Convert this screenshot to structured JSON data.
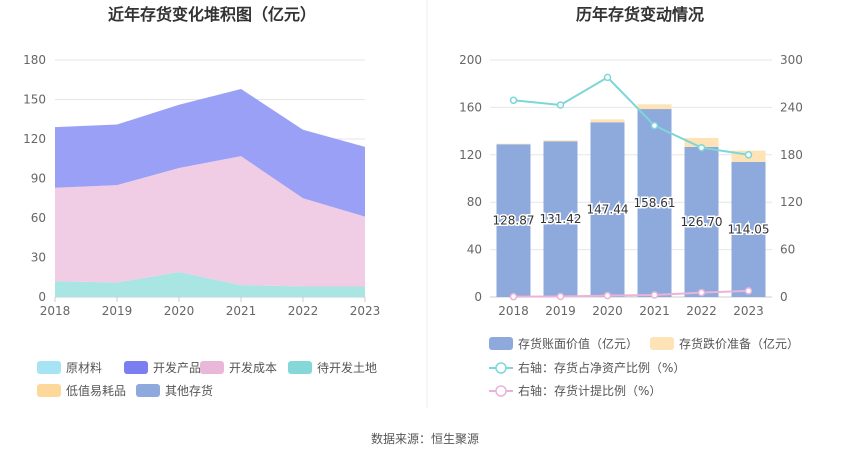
{
  "chart_data": [
    {
      "type": "area",
      "title": "近年存货变化堆积图（亿元）",
      "x": [
        "2018",
        "2019",
        "2020",
        "2021",
        "2022",
        "2023"
      ],
      "ylim": [
        0,
        180
      ],
      "yticks": [
        "0",
        "30",
        "60",
        "90",
        "120",
        "150",
        "180"
      ],
      "grid": true,
      "series": [
        {
          "name": "原材料",
          "values": [
            0,
            0,
            0,
            0,
            0,
            0
          ],
          "color": "#a6e3f5"
        },
        {
          "name": "开发产品",
          "values": [
            46,
            46,
            48,
            51,
            52,
            53
          ],
          "color": "#9aa0f5"
        },
        {
          "name": "开发成本",
          "values": [
            71,
            74,
            79,
            98,
            67,
            53
          ],
          "color": "#f0cde4"
        },
        {
          "name": "待开发土地",
          "values": [
            12,
            11,
            19,
            9,
            8,
            8
          ],
          "color": "#a8e5e3"
        },
        {
          "name": "低值易耗品",
          "values": [
            0,
            0,
            0,
            0,
            0,
            0
          ],
          "color": "#fcd99a"
        },
        {
          "name": "其他存货",
          "values": [
            0,
            0,
            0,
            0,
            0,
            0
          ],
          "color": "#8ea9db"
        }
      ],
      "legend": [
        {
          "name": "原材料",
          "color": "#a6e3f5"
        },
        {
          "name": "开发产品",
          "color": "#7a7ef0"
        },
        {
          "name": "开发成本",
          "color": "#e9b8d8"
        },
        {
          "name": "待开发土地",
          "color": "#86d7d8"
        },
        {
          "name": "低值易耗品",
          "color": "#fcd99a"
        },
        {
          "name": "其他存货",
          "color": "#8ea9db"
        }
      ]
    },
    {
      "type": "bar",
      "title": "历年存货变动情况",
      "categories": [
        "2018",
        "2019",
        "2020",
        "2021",
        "2022",
        "2023"
      ],
      "ylim": [
        0,
        200
      ],
      "yticks": [
        "0",
        "40",
        "80",
        "120",
        "160",
        "200"
      ],
      "y2lim": [
        0,
        300
      ],
      "y2ticks": [
        "0",
        "60",
        "120",
        "180",
        "240",
        "300"
      ],
      "bars": [
        {
          "name": "存货账面价值（亿元）",
          "values": [
            128.87,
            131.42,
            147.44,
            158.61,
            126.7,
            114.05
          ],
          "labels": [
            "128.87",
            "131.42",
            "147.44",
            "158.61",
            "126.70",
            "114.05"
          ],
          "color": "#8ea9db"
        },
        {
          "name": "存货跌价准备（亿元）",
          "values": [
            0.5,
            0.8,
            2.5,
            4.0,
            7.5,
            9.5
          ],
          "color": "#fde3b5"
        }
      ],
      "lines": [
        {
          "name": "右轴：存货占净资产比例（%）",
          "values": [
            249,
            243,
            278,
            217,
            189,
            180
          ],
          "color": "#7dd6d8"
        },
        {
          "name": "右轴：存货计提比例（%）",
          "values": [
            0.4,
            0.6,
            1.7,
            2.5,
            5.6,
            7.7
          ],
          "color": "#eab3da"
        }
      ]
    }
  ],
  "footer": {
    "source": "数据来源：恒生聚源"
  }
}
